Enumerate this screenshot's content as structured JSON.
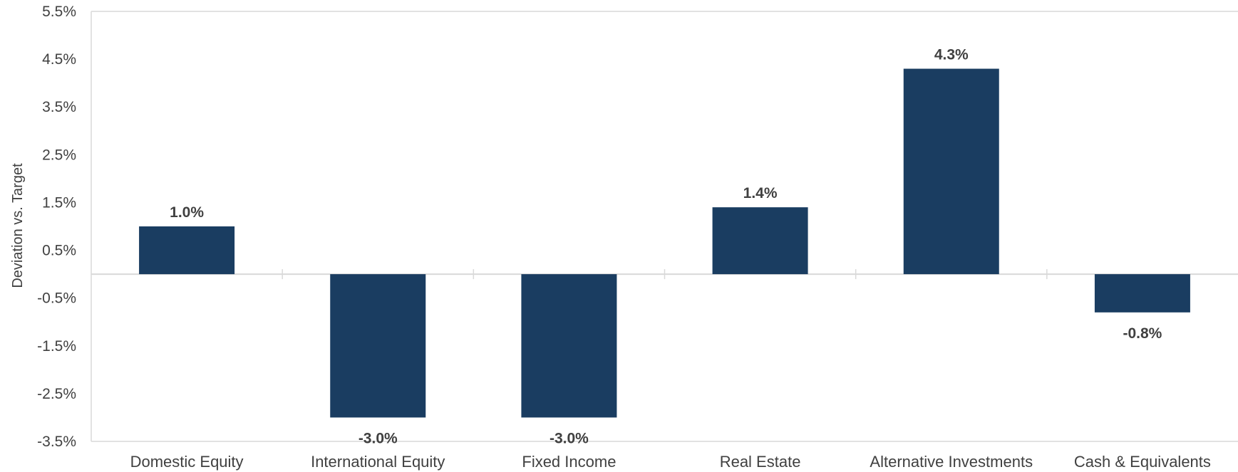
{
  "chart_data": {
    "type": "bar",
    "categories": [
      "Domestic Equity",
      "International Equity",
      "Fixed Income",
      "Real Estate",
      "Alternative Investments",
      "Cash & Equivalents"
    ],
    "values": [
      1.0,
      -3.0,
      -3.0,
      1.4,
      4.3,
      -0.8
    ],
    "data_labels": [
      "1.0%",
      "-3.0%",
      "-3.0%",
      "1.4%",
      "4.3%",
      "-0.8%"
    ],
    "title": "",
    "xlabel": "",
    "ylabel": "Deviation  vs. Target",
    "ylim": [
      -3.5,
      5.5
    ],
    "y_ticks": [
      5.5,
      4.5,
      3.5,
      2.5,
      1.5,
      0.5,
      -0.5,
      -1.5,
      -2.5,
      -3.5
    ],
    "y_tick_labels": [
      "5.5%",
      "4.5%",
      "3.5%",
      "2.5%",
      "1.5%",
      "0.5%",
      "-0.5%",
      "-1.5%",
      "-2.5%",
      "-3.5%"
    ],
    "grid": false,
    "legend": "none",
    "bar_color": "#1a3d61"
  }
}
